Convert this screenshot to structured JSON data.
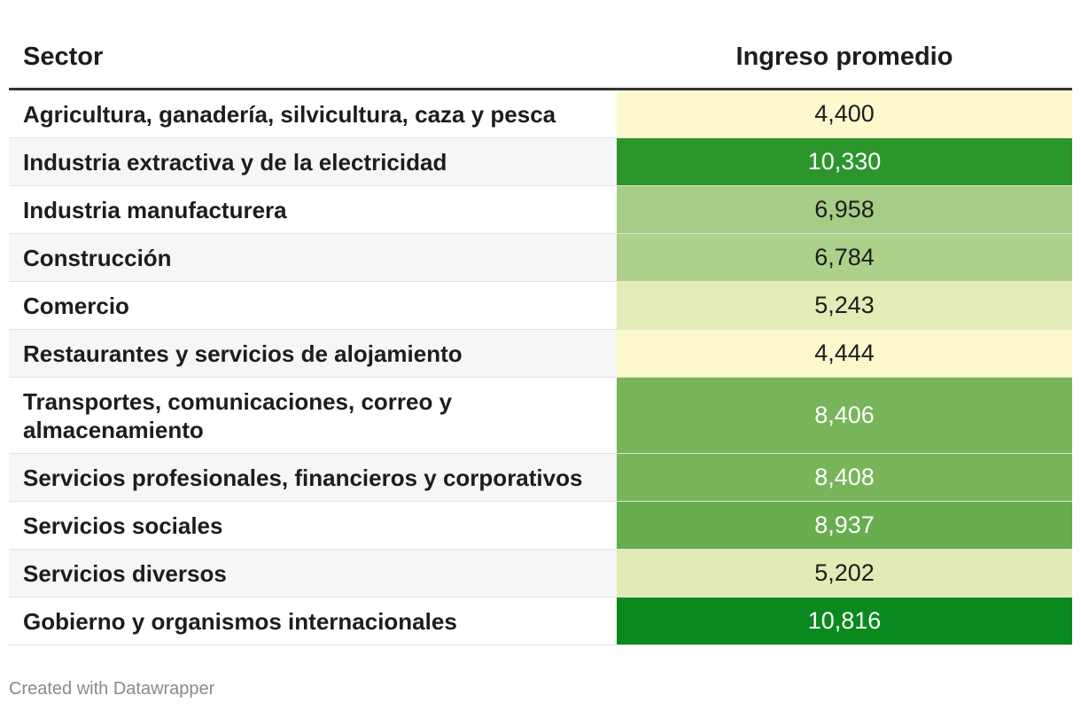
{
  "header": {
    "sector_label": "Sector",
    "value_label": "Ingreso promedio"
  },
  "rows": [
    {
      "sector": "Agricultura, ganadería, silvicultura, caza y pesca",
      "value": "4,400",
      "bg": "#fdf9cd",
      "fg": "#1d1d1d"
    },
    {
      "sector": "Industria extractiva y de la electricidad",
      "value": "10,330",
      "bg": "#2c962c",
      "fg": "#ffffff"
    },
    {
      "sector": "Industria manufacturera",
      "value": "6,958",
      "bg": "#a6cd85",
      "fg": "#1d1d1d"
    },
    {
      "sector": "Construcción",
      "value": "6,784",
      "bg": "#acd18a",
      "fg": "#1d1d1d"
    },
    {
      "sector": "Comercio",
      "value": "5,243",
      "bg": "#e3ecb6",
      "fg": "#1d1d1d"
    },
    {
      "sector": "Restaurantes y servicios de alojamiento",
      "value": "4,444",
      "bg": "#fcf8cc",
      "fg": "#1d1d1d"
    },
    {
      "sector": "Transportes, comunicaciones, correo y almacenamiento",
      "value": "8,406",
      "bg": "#78b55a",
      "fg": "#ffffff"
    },
    {
      "sector": "Servicios profesionales, financieros y corporativos",
      "value": "8,408",
      "bg": "#78b55a",
      "fg": "#ffffff"
    },
    {
      "sector": "Servicios sociales",
      "value": "8,937",
      "bg": "#67ad4e",
      "fg": "#ffffff"
    },
    {
      "sector": "Servicios diversos",
      "value": "5,202",
      "bg": "#e2ebb5",
      "fg": "#1d1d1d"
    },
    {
      "sector": "Gobierno y organismos internacionales",
      "value": "10,816",
      "bg": "#0a8a1e",
      "fg": "#ffffff"
    }
  ],
  "footer": {
    "credit": "Created with Datawrapper"
  },
  "chart_data": {
    "type": "table",
    "title": "",
    "columns": [
      "Sector",
      "Ingreso promedio"
    ],
    "categories": [
      "Agricultura, ganadería, silvicultura, caza y pesca",
      "Industria extractiva y de la electricidad",
      "Industria manufacturera",
      "Construcción",
      "Comercio",
      "Restaurantes y servicios de alojamiento",
      "Transportes, comunicaciones, correo y almacenamiento",
      "Servicios profesionales, financieros y corporativos",
      "Servicios sociales",
      "Servicios diversos",
      "Gobierno y organismos internacionales"
    ],
    "values": [
      4400,
      10330,
      6958,
      6784,
      5243,
      4444,
      8406,
      8408,
      8937,
      5202,
      10816
    ]
  }
}
